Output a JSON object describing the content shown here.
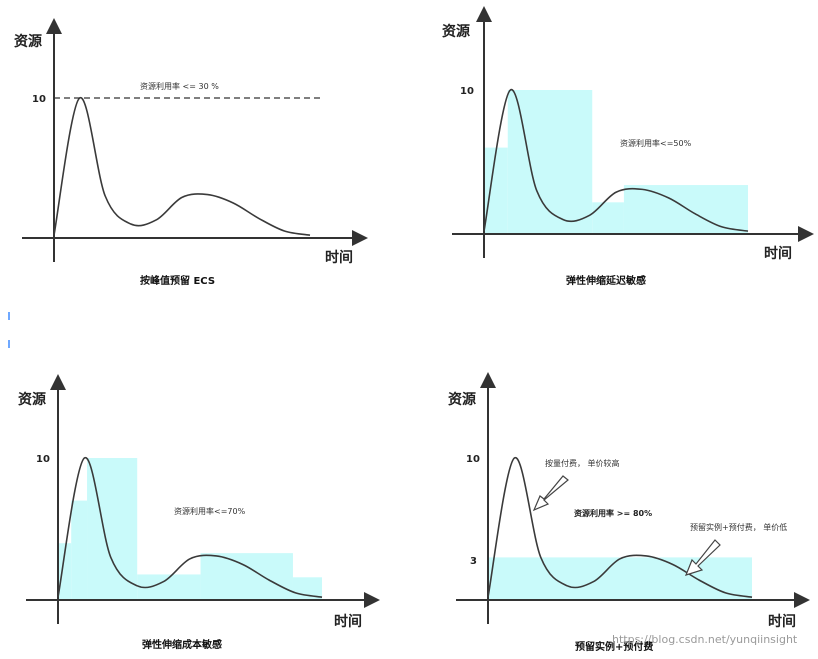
{
  "chart_data": [
    {
      "type": "line",
      "title": "按峰值预留 ECS",
      "ylabel": "资源",
      "xlabel": "时间",
      "yticks": [
        "10"
      ],
      "ylim": [
        0,
        12
      ],
      "x": [
        0,
        1,
        2,
        3,
        4,
        5,
        6,
        7,
        8,
        9,
        10
      ],
      "series": [
        {
          "values": [
            0.2,
            10,
            3,
            1,
            1.3,
            2.9,
            3.1,
            2.5,
            1.4,
            0.5,
            0.2
          ]
        }
      ],
      "reference_line": {
        "y": 10,
        "style": "dashed",
        "label": "资源利用率 <= 30 %"
      }
    },
    {
      "type": "line",
      "title": "弹性伸缩延迟敏感",
      "ylabel": "资源",
      "xlabel": "时间",
      "yticks": [
        "10"
      ],
      "ylim": [
        0,
        12
      ],
      "x": [
        0,
        1,
        2,
        3,
        4,
        5,
        6,
        7,
        8,
        9,
        10
      ],
      "series": [
        {
          "values": [
            0.2,
            10,
            3,
            1,
            1.3,
            2.9,
            3.1,
            2.5,
            1.4,
            0.5,
            0.2
          ]
        }
      ],
      "capacity_steps": [
        {
          "x_start": 0,
          "x_end": 0.9,
          "value": 6
        },
        {
          "x_start": 0.9,
          "x_end": 4.1,
          "value": 10
        },
        {
          "x_start": 4.1,
          "x_end": 5.3,
          "value": 2.2
        },
        {
          "x_start": 5.3,
          "x_end": 10.0,
          "value": 3.4
        }
      ],
      "annotation": "资源利用率<=50%"
    },
    {
      "type": "line",
      "title": "弹性伸缩成本敏感",
      "ylabel": "资源",
      "xlabel": "时间",
      "yticks": [
        "10"
      ],
      "ylim": [
        0,
        12
      ],
      "x": [
        0,
        1,
        2,
        3,
        4,
        5,
        6,
        7,
        8,
        9,
        10
      ],
      "series": [
        {
          "values": [
            0.2,
            10,
            3,
            1,
            1.3,
            2.9,
            3.1,
            2.5,
            1.4,
            0.5,
            0.2
          ]
        }
      ],
      "capacity_steps": [
        {
          "x_start": 0,
          "x_end": 0.5,
          "value": 4
        },
        {
          "x_start": 0.5,
          "x_end": 1.1,
          "value": 7
        },
        {
          "x_start": 1.1,
          "x_end": 3.0,
          "value": 10
        },
        {
          "x_start": 3.0,
          "x_end": 5.4,
          "value": 1.8
        },
        {
          "x_start": 5.4,
          "x_end": 8.9,
          "value": 3.3
        },
        {
          "x_start": 8.9,
          "x_end": 10.0,
          "value": 1.6
        }
      ],
      "annotation": "资源利用率<=70%"
    },
    {
      "type": "line",
      "title": "预留实例+预付费",
      "ylabel": "资源",
      "xlabel": "时间",
      "yticks": [
        "10",
        "3"
      ],
      "ylim": [
        0,
        12
      ],
      "x": [
        0,
        1,
        2,
        3,
        4,
        5,
        6,
        7,
        8,
        9,
        10
      ],
      "series": [
        {
          "values": [
            0.2,
            10,
            3,
            1,
            1.3,
            2.9,
            3.1,
            2.5,
            1.4,
            0.5,
            0.2
          ]
        }
      ],
      "capacity_steps": [
        {
          "x_start": 0,
          "x_end": 10.0,
          "value": 3
        }
      ],
      "annotations": [
        "按量付费， 单价较高",
        "资源利用率 >= 80%",
        "预留实例+预付费， 单价低"
      ]
    }
  ],
  "watermark": "https://blog.csdn.net/yunqiinsight",
  "colors": {
    "fill": "#c9fafa",
    "line": "#3a3a3a",
    "axis": "#333333"
  }
}
